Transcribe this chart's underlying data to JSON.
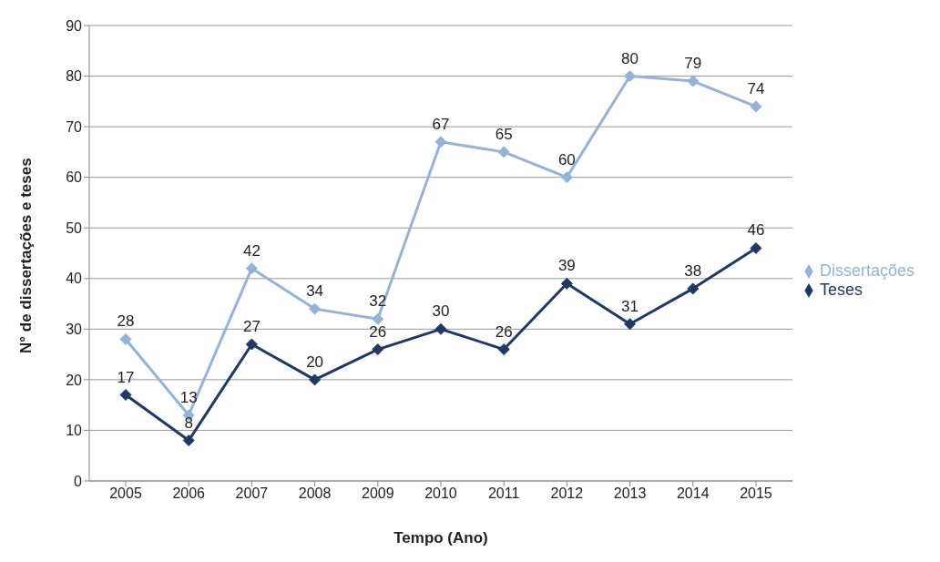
{
  "chart_data": {
    "type": "line",
    "xlabel": "Tempo (Ano)",
    "ylabel": "N° de dissertações e teses",
    "categories": [
      "2005",
      "2006",
      "2007",
      "2008",
      "2009",
      "2010",
      "2011",
      "2012",
      "2013",
      "2014",
      "2015"
    ],
    "series": [
      {
        "name": "Dissertações",
        "color": "#95b3d7",
        "values": [
          28,
          13,
          42,
          34,
          32,
          67,
          65,
          60,
          80,
          79,
          74
        ]
      },
      {
        "name": "Teses",
        "color": "#1f3864",
        "values": [
          17,
          8,
          27,
          20,
          26,
          30,
          26,
          39,
          31,
          38,
          46
        ]
      }
    ],
    "ylim": [
      0,
      90
    ],
    "yticks": [
      0,
      10,
      20,
      30,
      40,
      50,
      60,
      70,
      80,
      90
    ],
    "grid": "y",
    "legend": "right",
    "marker": "diamond",
    "line_style": "solid",
    "data_labels": true
  }
}
